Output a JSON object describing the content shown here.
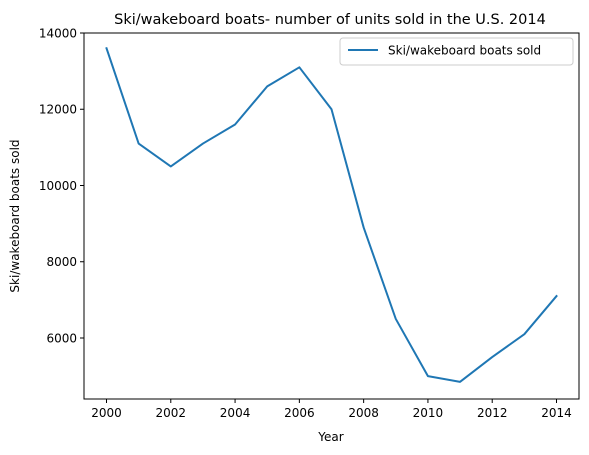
{
  "chart_data": {
    "type": "line",
    "title": "Ski/wakeboard boats- number of units sold in the U.S. 2014",
    "xlabel": "Year",
    "ylabel": "Ski/wakeboard boats sold",
    "x": [
      2000,
      2001,
      2002,
      2003,
      2004,
      2005,
      2006,
      2007,
      2008,
      2009,
      2010,
      2011,
      2012,
      2013,
      2014
    ],
    "series": [
      {
        "name": "Ski/wakeboard boats sold",
        "color": "#1f77b4",
        "values": [
          13600,
          11100,
          10500,
          11100,
          11600,
          12600,
          13100,
          12000,
          8900,
          6500,
          5000,
          4850,
          5500,
          6100,
          7100
        ]
      }
    ],
    "xlim": [
      1999.3,
      2014.7
    ],
    "ylim": [
      4400,
      14000
    ],
    "xticks": [
      "2000",
      "2002",
      "2004",
      "2006",
      "2008",
      "2010",
      "2012",
      "2014"
    ],
    "yticks": [
      "6000",
      "8000",
      "10000",
      "12000",
      "14000"
    ],
    "grid": false,
    "legend_position": "upper right"
  }
}
